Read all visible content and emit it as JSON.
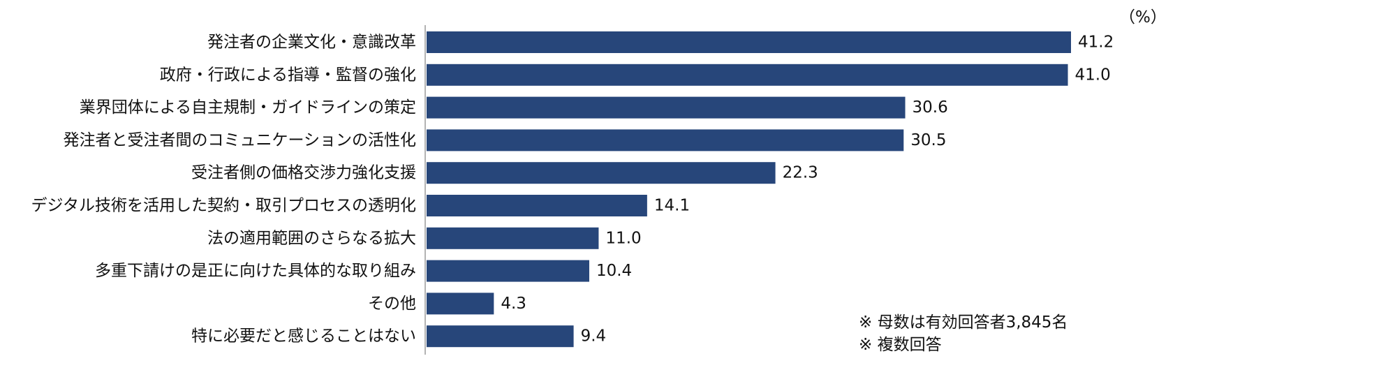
{
  "chart_data": {
    "type": "bar",
    "orientation": "horizontal",
    "unit_label": "（%）",
    "categories": [
      "発注者の企業文化・意識改革",
      "政府・行政による指導・監督の強化",
      "業界団体による自主規制・ガイドラインの策定",
      "発注者と受注者間のコミュニケーションの活性化",
      "受注者側の価格交渉力強化支援",
      "デジタル技術を活用した契約・取引プロセスの透明化",
      "法の適用範囲のさらなる拡大",
      "多重下請けの是正に向けた具体的な取り組み",
      "その他",
      "特に必要だと感じることはない"
    ],
    "values": [
      41.2,
      41.0,
      30.6,
      30.5,
      22.3,
      14.1,
      11.0,
      10.4,
      4.3,
      9.4
    ],
    "value_labels": [
      "41.2",
      "41.0",
      "30.6",
      "30.5",
      "22.3",
      "14.1",
      "11.0",
      "10.4",
      "4.3",
      "9.4"
    ],
    "xlim": [
      0,
      41.2
    ],
    "bar_color": "#27467a",
    "grid": false,
    "legend": "none"
  },
  "notes": {
    "base": "※ 母数は有効回答者3,845名",
    "multi": "※ 複数回答"
  }
}
